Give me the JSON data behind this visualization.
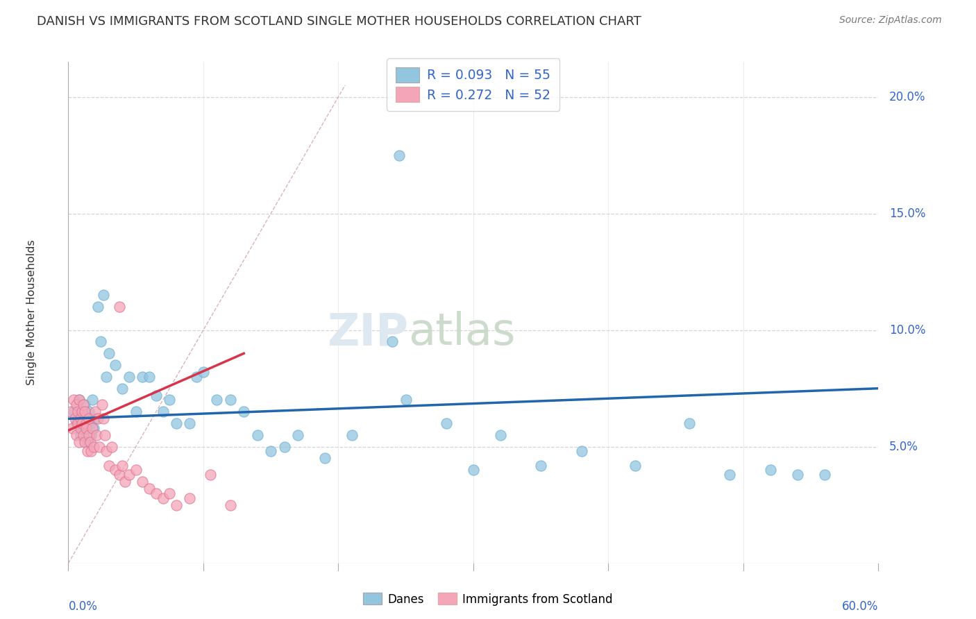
{
  "title": "DANISH VS IMMIGRANTS FROM SCOTLAND SINGLE MOTHER HOUSEHOLDS CORRELATION CHART",
  "source": "Source: ZipAtlas.com",
  "ylabel": "Single Mother Households",
  "xmin": 0.0,
  "xmax": 0.6,
  "ymin": 0.0,
  "ymax": 0.215,
  "ytick_vals": [
    0.05,
    0.1,
    0.15,
    0.2
  ],
  "ytick_labels": [
    "5.0%",
    "10.0%",
    "15.0%",
    "20.0%"
  ],
  "xtick_vals": [
    0.0,
    0.1,
    0.2,
    0.3,
    0.4,
    0.5,
    0.6
  ],
  "xtick_labels": [
    "0.0%",
    "",
    "",
    "",
    "",
    "",
    "60.0%"
  ],
  "legend_line1": "R = 0.093   N = 55",
  "legend_line2": "R = 0.272   N = 52",
  "watermark_part1": "ZIP",
  "watermark_part2": "atlas",
  "blue_color": "#92c5de",
  "pink_color": "#f4a6b8",
  "blue_scatter_edge": "#6baed6",
  "pink_scatter_edge": "#e07090",
  "blue_line_color": "#2166ac",
  "pink_line_color": "#d6354a",
  "diag_line_color": "#d0a0a8",
  "grid_color": "#d0d0d0",
  "background_color": "#ffffff",
  "danes_x": [
    0.004,
    0.006,
    0.008,
    0.009,
    0.01,
    0.011,
    0.012,
    0.013,
    0.014,
    0.015,
    0.016,
    0.017,
    0.018,
    0.019,
    0.02,
    0.022,
    0.024,
    0.026,
    0.028,
    0.03,
    0.035,
    0.04,
    0.045,
    0.05,
    0.055,
    0.06,
    0.065,
    0.07,
    0.075,
    0.08,
    0.09,
    0.095,
    0.1,
    0.11,
    0.12,
    0.13,
    0.14,
    0.15,
    0.16,
    0.17,
    0.19,
    0.21,
    0.25,
    0.28,
    0.32,
    0.35,
    0.38,
    0.42,
    0.46,
    0.49,
    0.52,
    0.54,
    0.56,
    0.24,
    0.3
  ],
  "danes_y": [
    0.065,
    0.06,
    0.07,
    0.055,
    0.063,
    0.058,
    0.068,
    0.062,
    0.052,
    0.065,
    0.06,
    0.055,
    0.07,
    0.058,
    0.062,
    0.11,
    0.095,
    0.115,
    0.08,
    0.09,
    0.085,
    0.075,
    0.08,
    0.065,
    0.08,
    0.08,
    0.072,
    0.065,
    0.07,
    0.06,
    0.06,
    0.08,
    0.082,
    0.07,
    0.07,
    0.065,
    0.055,
    0.048,
    0.05,
    0.055,
    0.045,
    0.055,
    0.07,
    0.06,
    0.055,
    0.042,
    0.048,
    0.042,
    0.06,
    0.038,
    0.04,
    0.038,
    0.038,
    0.095,
    0.04
  ],
  "scots_x": [
    0.002,
    0.003,
    0.004,
    0.005,
    0.006,
    0.006,
    0.007,
    0.007,
    0.008,
    0.008,
    0.009,
    0.009,
    0.01,
    0.01,
    0.011,
    0.011,
    0.012,
    0.012,
    0.013,
    0.013,
    0.014,
    0.015,
    0.015,
    0.016,
    0.017,
    0.018,
    0.019,
    0.02,
    0.021,
    0.022,
    0.023,
    0.025,
    0.026,
    0.027,
    0.028,
    0.03,
    0.032,
    0.035,
    0.038,
    0.04,
    0.042,
    0.045,
    0.05,
    0.055,
    0.06,
    0.065,
    0.07,
    0.075,
    0.08,
    0.09,
    0.105,
    0.12
  ],
  "scots_y": [
    0.065,
    0.058,
    0.07,
    0.062,
    0.055,
    0.068,
    0.06,
    0.065,
    0.052,
    0.07,
    0.058,
    0.062,
    0.065,
    0.06,
    0.055,
    0.068,
    0.052,
    0.065,
    0.06,
    0.058,
    0.048,
    0.055,
    0.062,
    0.052,
    0.048,
    0.058,
    0.05,
    0.065,
    0.055,
    0.062,
    0.05,
    0.068,
    0.062,
    0.055,
    0.048,
    0.042,
    0.05,
    0.04,
    0.038,
    0.042,
    0.035,
    0.038,
    0.04,
    0.035,
    0.032,
    0.03,
    0.028,
    0.03,
    0.025,
    0.028,
    0.038,
    0.025
  ]
}
